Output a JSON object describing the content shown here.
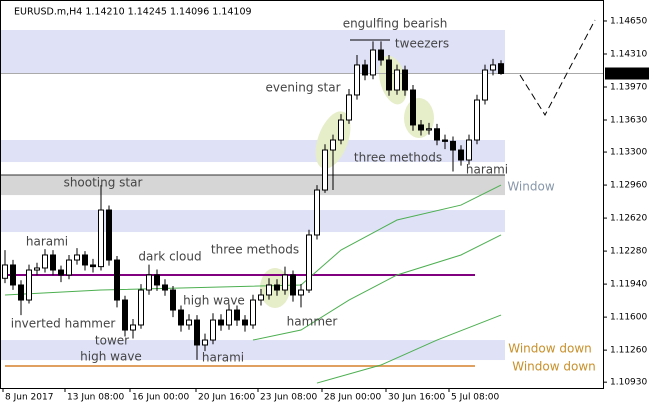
{
  "chart_data": {
    "type": "candlestick",
    "title": "EURUSD.m,H4  1.14210 1.14245 1.14096 1.14109",
    "open": [
      1.12,
      1.12137,
      1.11931,
      1.11776,
      1.12085,
      1.12106,
      1.1224,
      1.12085,
      1.12034,
      1.12188,
      1.1224,
      1.12137,
      1.1212,
      1.12703,
      1.12188,
      1.11776,
      1.11467,
      1.11519,
      1.11879,
      1.12034,
      1.11931,
      1.11879,
      1.11673,
      1.11519,
      1.1157,
      1.11313,
      1.11364,
      1.1157,
      1.11519,
      1.11673,
      1.1157,
      1.11519,
      1.11776,
      1.11828,
      1.11931,
      1.11879,
      1.12034,
      1.11828,
      1.11879,
      1.12446,
      1.12909,
      1.13321,
      1.13424,
      1.1363,
      1.13888,
      1.14197,
      1.14094,
      1.14351,
      1.14248,
      1.13939,
      1.14145,
      1.13939,
      1.13579,
      1.13527,
      1.1354,
      1.13424,
      1.1341,
      1.13321,
      1.13218,
      1.13424,
      1.13836,
      1.14145,
      1.1421
    ],
    "high": [
      1.1229,
      1.1219,
      1.1198,
      1.1214,
      1.1216,
      1.123,
      1.1229,
      1.1213,
      1.1224,
      1.1231,
      1.1228,
      1.122,
      1.1296,
      1.1275,
      1.1223,
      1.1182,
      1.1158,
      1.1194,
      1.1214,
      1.1209,
      1.1199,
      1.1192,
      1.1172,
      1.1163,
      1.1162,
      1.1143,
      1.1164,
      1.1163,
      1.1173,
      1.1172,
      1.1162,
      1.1183,
      1.1189,
      1.12,
      1.1199,
      1.1212,
      1.1208,
      1.1194,
      1.125,
      1.1296,
      1.1338,
      1.1348,
      1.1369,
      1.1395,
      1.143,
      1.1425,
      1.1444,
      1.1444,
      1.143,
      1.142,
      1.1419,
      1.1399,
      1.1363,
      1.136,
      1.1359,
      1.1348,
      1.1346,
      1.1337,
      1.1348,
      1.1389,
      1.142,
      1.1426,
      1.14245
    ],
    "low": [
      1.1195,
      1.1188,
      1.1162,
      1.1174,
      1.1203,
      1.1206,
      1.1203,
      1.1196,
      1.1199,
      1.1214,
      1.1208,
      1.1206,
      1.1208,
      1.1213,
      1.117,
      1.114,
      1.1138,
      1.1148,
      1.1183,
      1.1187,
      1.1182,
      1.116,
      1.1145,
      1.1147,
      1.1116,
      1.1125,
      1.1132,
      1.1146,
      1.1147,
      1.1151,
      1.1145,
      1.1148,
      1.1172,
      1.1178,
      1.1182,
      1.1183,
      1.1176,
      1.117,
      1.1185,
      1.124,
      1.1288,
      1.12909,
      1.1338,
      1.1359,
      1.1384,
      1.1404,
      1.1405,
      1.1419,
      1.1388,
      1.1389,
      1.1388,
      1.1352,
      1.1347,
      1.1348,
      1.1337,
      1.1333,
      1.131,
      1.1316,
      1.1317,
      1.1338,
      1.1379,
      1.1409,
      1.14096
    ],
    "close": [
      1.12137,
      1.11931,
      1.11776,
      1.12085,
      1.12106,
      1.1224,
      1.12085,
      1.12034,
      1.12188,
      1.1224,
      1.12137,
      1.1212,
      1.12703,
      1.12188,
      1.11776,
      1.11467,
      1.11519,
      1.11879,
      1.12034,
      1.11931,
      1.11879,
      1.11673,
      1.11519,
      1.1157,
      1.11313,
      1.11364,
      1.1157,
      1.11519,
      1.11673,
      1.1157,
      1.11519,
      1.11776,
      1.11828,
      1.11931,
      1.11879,
      1.12034,
      1.11828,
      1.11879,
      1.12446,
      1.12909,
      1.13321,
      1.13424,
      1.1363,
      1.13888,
      1.14197,
      1.14094,
      1.14351,
      1.14248,
      1.13939,
      1.14145,
      1.13939,
      1.13579,
      1.13527,
      1.1354,
      1.13424,
      1.1341,
      1.13321,
      1.13218,
      1.13424,
      1.13836,
      1.14145,
      1.14197,
      1.14109
    ],
    "series": [
      {
        "color": "#4caf50",
        "x": [
          0,
          12,
          37,
          42,
          49,
          57,
          62
        ],
        "values": [
          1.11828,
          1.11879,
          1.11931,
          1.12291,
          1.126,
          1.12754,
          1.1296
        ]
      },
      {
        "color": "#4caf50",
        "x": [
          31,
          37,
          43,
          49,
          57,
          62
        ],
        "values": [
          1.11364,
          1.11467,
          1.11776,
          1.12034,
          1.1224,
          1.12446
        ]
      },
      {
        "color": "#4caf50",
        "x": [
          39,
          47,
          54,
          62
        ],
        "values": [
          1.10921,
          1.11107,
          1.11364,
          1.11621
        ]
      }
    ],
    "levels": [
      {
        "value": 1.12034,
        "color": "#800080"
      },
      {
        "value": 1.11096,
        "color": "#e0a060"
      }
    ],
    "zones": [
      {
        "ylim": [
          1.14104,
          1.14557
        ],
        "color": "#dfe2f7"
      },
      {
        "ylim": [
          1.13197,
          1.13424
        ],
        "color": "#dfe2f7"
      },
      {
        "ylim": [
          1.12857,
          1.13064
        ],
        "color": "#d6d6d6"
      },
      {
        "ylim": [
          1.12476,
          1.12703
        ],
        "color": "#dfe2f7"
      },
      {
        "ylim": [
          1.11158,
          1.11364
        ],
        "color": "#dfe2f7"
      }
    ],
    "annotations": [
      {
        "text": "engulfing bearish",
        "color": "#444444"
      },
      {
        "text": "tweezers",
        "color": "#444444"
      },
      {
        "text": "evening star",
        "color": "#444444"
      },
      {
        "text": "three methods",
        "color": "#444444"
      },
      {
        "text": "harami",
        "color": "#444444"
      },
      {
        "text": "Window",
        "color": "#8797aa"
      },
      {
        "text": "shooting star",
        "color": "#444444"
      },
      {
        "text": "harami",
        "color": "#444444"
      },
      {
        "text": "three methods",
        "color": "#444444"
      },
      {
        "text": "dark cloud",
        "color": "#444444"
      },
      {
        "text": "high wave",
        "color": "#444444"
      },
      {
        "text": "hammer",
        "color": "#444444"
      },
      {
        "text": "inverted hammer",
        "color": "#444444"
      },
      {
        "text": "tower",
        "color": "#444444"
      },
      {
        "text": "high wave",
        "color": "#444444"
      },
      {
        "text": "harami",
        "color": "#444444"
      },
      {
        "text": "Window down",
        "color": "#c8902a"
      },
      {
        "text": "Window down",
        "color": "#c8902a"
      }
    ],
    "xlim": [
      -0.625,
      74.75
    ],
    "xticks": [
      {
        "value": -0.25,
        "label": "8 Jun 2017"
      },
      {
        "value": 7.5,
        "label": "13 Jun 08:00"
      },
      {
        "value": 15.625,
        "label": "16 Jun 00:00"
      },
      {
        "value": 23.875,
        "label": "20 Jun 16:00"
      },
      {
        "value": 31.625,
        "label": "23 Jun 08:00"
      },
      {
        "value": 39.625,
        "label": "28 Jun 00:00"
      },
      {
        "value": 47.625,
        "label": "30 Jun 16:00"
      },
      {
        "value": 55.5,
        "label": "5 Jul 08:00"
      }
    ],
    "ylim": [
      1.1087,
      1.14866
    ],
    "yticks": [
      {
        "value": 1.1465,
        "label": "1.14650"
      },
      {
        "value": 1.1431,
        "label": "1.14310"
      },
      {
        "value": 1.1397,
        "label": "1.13970"
      },
      {
        "value": 1.1363,
        "label": "1.13630"
      },
      {
        "value": 1.133,
        "label": "1.13300"
      },
      {
        "value": 1.1296,
        "label": "1.12960"
      },
      {
        "value": 1.1262,
        "label": "1.12620"
      },
      {
        "value": 1.1228,
        "label": "1.12280"
      },
      {
        "value": 1.1194,
        "label": "1.11940"
      },
      {
        "value": 1.116,
        "label": "1.11600"
      },
      {
        "value": 1.1126,
        "label": "1.11260"
      },
      {
        "value": 1.1093,
        "label": "1.10930"
      }
    ]
  }
}
